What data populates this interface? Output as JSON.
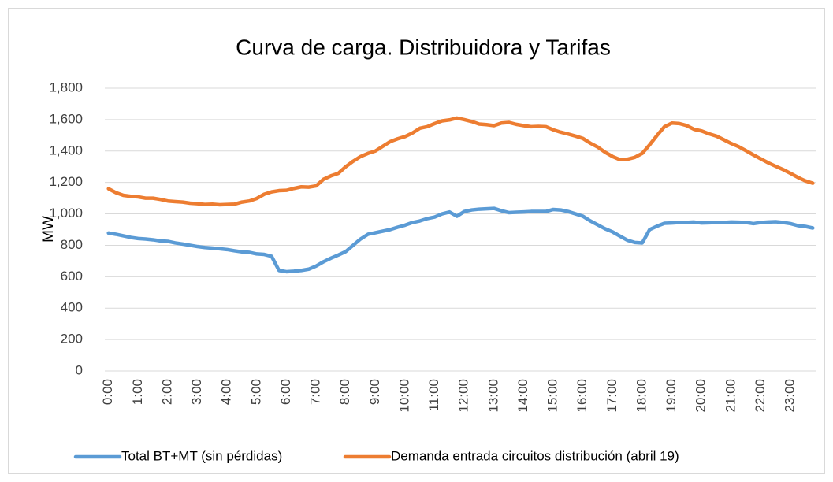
{
  "chart_data": {
    "type": "line",
    "title": "Curva de carga. Distribuidora y Tarifas",
    "y_label": "MW",
    "categories": [
      "0:00",
      null,
      null,
      null,
      "1:00",
      null,
      null,
      null,
      "2:00",
      null,
      null,
      null,
      "3:00",
      null,
      null,
      null,
      "4:00",
      null,
      null,
      null,
      "5:00",
      null,
      null,
      null,
      "6:00",
      null,
      null,
      null,
      "7:00",
      null,
      null,
      null,
      "8:00",
      null,
      null,
      null,
      "9:00",
      null,
      null,
      null,
      "10:00",
      null,
      null,
      null,
      "11:00",
      null,
      null,
      null,
      "12:00",
      null,
      null,
      null,
      "13:00",
      null,
      null,
      null,
      "14:00",
      null,
      null,
      null,
      "15:00",
      null,
      null,
      null,
      "16:00",
      null,
      null,
      null,
      "17:00",
      null,
      null,
      null,
      "18:00",
      null,
      null,
      null,
      "19:00",
      null,
      null,
      null,
      "20:00",
      null,
      null,
      null,
      "21:00",
      null,
      null,
      null,
      "22:00",
      null,
      null,
      null,
      "23:00",
      null,
      null,
      null
    ],
    "series": [
      {
        "name": "Total BT+MT (sin pérdidas)",
        "color": "#5b9bd5",
        "values": [
          878,
          870,
          860,
          850,
          843,
          840,
          835,
          828,
          825,
          815,
          808,
          800,
          792,
          786,
          782,
          778,
          773,
          765,
          758,
          755,
          745,
          742,
          730,
          640,
          632,
          635,
          640,
          648,
          668,
          695,
          718,
          738,
          760,
          800,
          840,
          870,
          880,
          890,
          900,
          915,
          928,
          945,
          955,
          970,
          980,
          1000,
          1012,
          985,
          1015,
          1025,
          1030,
          1032,
          1035,
          1020,
          1008,
          1010,
          1012,
          1015,
          1015,
          1015,
          1028,
          1025,
          1015,
          1000,
          985,
          955,
          930,
          905,
          885,
          858,
          832,
          818,
          815,
          900,
          922,
          940,
          942,
          945,
          946,
          948,
          942,
          943,
          945,
          945,
          948,
          947,
          945,
          938,
          945,
          948,
          950,
          945,
          938,
          925,
          920,
          910
        ]
      },
      {
        "name": "Demanda entrada circuitos distribución (abril 19)",
        "color": "#ed7d31",
        "values": [
          1160,
          1135,
          1118,
          1112,
          1108,
          1100,
          1100,
          1092,
          1082,
          1078,
          1075,
          1068,
          1065,
          1060,
          1062,
          1058,
          1060,
          1062,
          1075,
          1082,
          1098,
          1125,
          1140,
          1148,
          1150,
          1162,
          1172,
          1170,
          1178,
          1220,
          1242,
          1258,
          1300,
          1335,
          1365,
          1385,
          1400,
          1430,
          1460,
          1478,
          1492,
          1515,
          1545,
          1555,
          1575,
          1592,
          1598,
          1610,
          1600,
          1588,
          1572,
          1568,
          1562,
          1578,
          1582,
          1570,
          1562,
          1555,
          1557,
          1555,
          1535,
          1520,
          1508,
          1495,
          1480,
          1450,
          1425,
          1392,
          1365,
          1345,
          1348,
          1360,
          1385,
          1440,
          1500,
          1555,
          1578,
          1575,
          1562,
          1538,
          1528,
          1510,
          1495,
          1472,
          1448,
          1428,
          1402,
          1375,
          1350,
          1325,
          1303,
          1282,
          1258,
          1232,
          1210,
          1195
        ]
      }
    ],
    "ylim": [
      0,
      1800
    ],
    "yticks": [
      0,
      {
        "value": 200,
        "label": "200"
      },
      400,
      600,
      800,
      {
        "value": 1000,
        "label": "1,000"
      },
      {
        "value": 1200,
        "label": "1,200"
      },
      {
        "value": 1400,
        "label": "1,400"
      },
      {
        "value": 1600,
        "label": "1,600"
      },
      {
        "value": 1800,
        "label": "1,800"
      }
    ],
    "grid": true,
    "legend": "bottom"
  }
}
